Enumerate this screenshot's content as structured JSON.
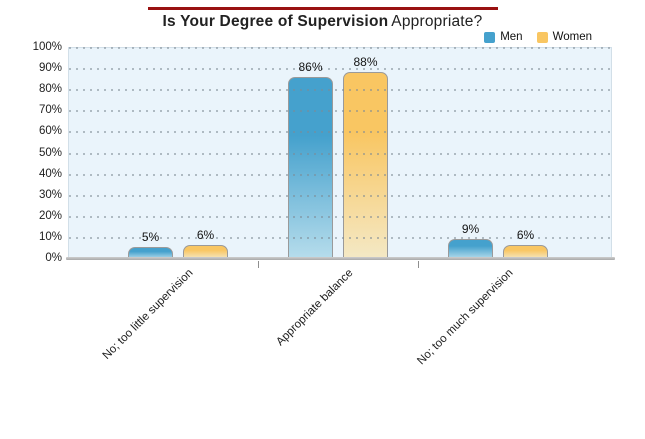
{
  "chart_data": {
    "type": "bar",
    "title": "Is Your Degree of Supervision Appropriate?",
    "title_bold_part": "Is Your Degree of Supervision",
    "title_regular_part": "Appropriate?",
    "title_rule_color": "#991111",
    "categories": [
      "No; too little supervision",
      "Appropriate balance",
      "No; too much supervision"
    ],
    "series": [
      {
        "name": "Men",
        "values": [
          5,
          86,
          9
        ],
        "color_top": "#45a1cd",
        "color_bottom": "#b7ddec"
      },
      {
        "name": "Women",
        "values": [
          6,
          88,
          6
        ],
        "color_top": "#f9c662",
        "color_bottom": "#f4e9c6"
      }
    ],
    "value_suffix": "%",
    "data_labels": {
      "men": [
        "5%",
        "86%",
        "9%"
      ],
      "women": [
        "6%",
        "88%",
        "6%"
      ]
    },
    "y_ticks": [
      "0%",
      "10%",
      "20%",
      "30%",
      "40%",
      "50%",
      "60%",
      "70%",
      "80%",
      "90%",
      "100%"
    ],
    "ylim": [
      0,
      100
    ],
    "grid": "horizontal-dotted",
    "legend_position": "top-right",
    "plot_bg": "#eaf4fb",
    "bar_border_color": "#9a9a9a"
  }
}
